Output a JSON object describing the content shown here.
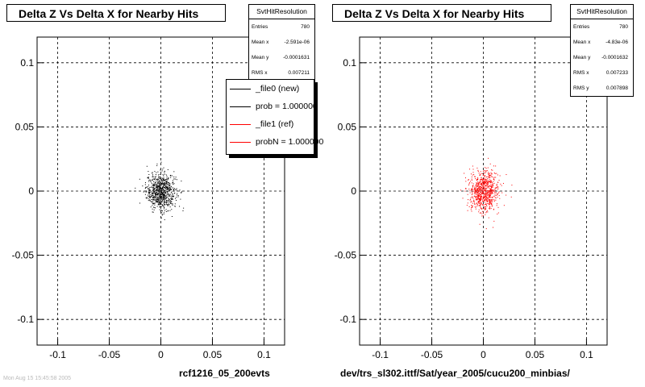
{
  "chart_data": [
    {
      "type": "scatter",
      "title": "Delta Z Vs Delta X for Nearby Hits",
      "xlim": [
        -0.12,
        0.12
      ],
      "ylim": [
        -0.12,
        0.12
      ],
      "xticks": [
        "-0.1",
        "-0.05",
        "0",
        "0.05",
        "0.1"
      ],
      "yticks": [
        "0.1",
        "0.05",
        "0",
        "-0.05",
        "-0.1"
      ],
      "grid": true,
      "xlabel": "rcf1216_05_200evts",
      "series": [
        {
          "name": "_file0 (new)",
          "color": "#000000",
          "center": [
            0,
            0
          ],
          "spread_x": 0.0072,
          "spread_y": 0.0072,
          "count": 780
        }
      ],
      "stats": {
        "title": "SvtHitResolution",
        "rows": [
          {
            "label": "Entries",
            "value": "780"
          },
          {
            "label": "Mean x",
            "value": "-2.591e-06"
          },
          {
            "label": "Mean y",
            "value": "-0.0001631"
          },
          {
            "label": "RMS x",
            "value": "0.007211"
          }
        ]
      },
      "legend": [
        {
          "label": "_file0 (new)",
          "color": "#000000"
        },
        {
          "label": "prob = 1.000000",
          "color": "#000000"
        },
        {
          "label": "_file1 (ref)",
          "color": "#ff0000"
        },
        {
          "label": "probN = 1.000000",
          "color": "#ff0000"
        }
      ]
    },
    {
      "type": "scatter",
      "title": "Delta Z Vs Delta X for Nearby Hits",
      "xlim": [
        -0.12,
        0.12
      ],
      "ylim": [
        -0.12,
        0.12
      ],
      "xticks": [
        "-0.1",
        "-0.05",
        "0",
        "0.05",
        "0.1"
      ],
      "yticks": [
        "0.1",
        "0.05",
        "0",
        "-0.05",
        "-0.1"
      ],
      "grid": true,
      "xlabel": "dev/trs_sl302.ittf/Sat/year_2005/cucu200_minbias/",
      "series": [
        {
          "name": "_file1 (ref)",
          "color": "#ff0000",
          "center": [
            0,
            0
          ],
          "spread_x": 0.0072,
          "spread_y": 0.0079,
          "count": 780
        }
      ],
      "stats": {
        "title": "SvtHitResolution",
        "rows": [
          {
            "label": "Entries",
            "value": "780"
          },
          {
            "label": "Mean x",
            "value": "-4.83e-06"
          },
          {
            "label": "Mean y",
            "value": "-0.0001632"
          },
          {
            "label": "RMS x",
            "value": "0.007233"
          },
          {
            "label": "RMS y",
            "value": "0.007898"
          }
        ]
      }
    }
  ],
  "footer_text": "Mon Aug 15 15:45:58 2005"
}
